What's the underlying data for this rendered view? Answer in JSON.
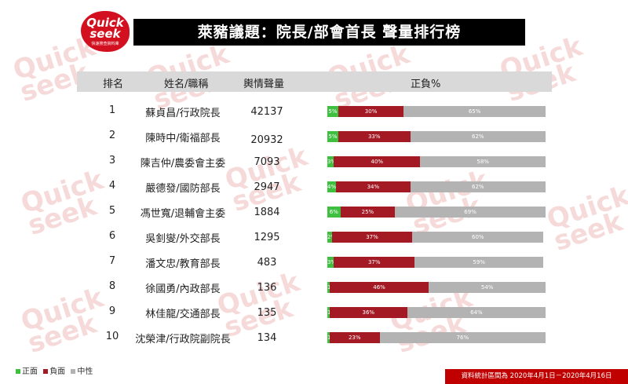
{
  "brand": {
    "logo_line1": "Quick",
    "logo_line2": "seek",
    "logo_sub": "快速搜查資料庫"
  },
  "title": "萊豬議題：院長/部會首長 聲量排行榜",
  "header": {
    "rank": "排名",
    "name": "姓名/職稱",
    "volume": "輿情聲量",
    "sentiment": "正負%"
  },
  "legend": {
    "positive": "正面",
    "negative": "負面",
    "neutral": "中性"
  },
  "footer": "資料統計區間為 2020年4月1日－2020年4月16日",
  "colors": {
    "positive": "#3fbf3f",
    "negative": "#a31a24",
    "neutral": "#b3b3b3",
    "title_bg": "#000000",
    "footer_bg": "#c00000"
  },
  "chart_data": {
    "type": "bar",
    "stacked": true,
    "orientation": "horizontal",
    "title": "萊豬議題：院長/部會首長 聲量排行榜",
    "categories": [
      "蘇貞昌/行政院長",
      "陳時中/衛福部長",
      "陳吉仲/農委會主委",
      "嚴德發/國防部長",
      "馮世寬/退輔會主委",
      "吳釗燮/外交部長",
      "潘文忠/教育部長",
      "徐國勇/內政部長",
      "林佳龍/交通部長",
      "沈榮津/行政院副院長"
    ],
    "ranks": [
      "1",
      "2",
      "3",
      "4",
      "5",
      "6",
      "7",
      "8",
      "9",
      "10"
    ],
    "volume": [
      42137,
      20932,
      7093,
      2947,
      1884,
      1295,
      483,
      136,
      135,
      134
    ],
    "series": [
      {
        "name": "正面",
        "values": [
          5,
          5,
          3,
          4,
          6,
          2,
          3,
          1,
          1,
          1
        ]
      },
      {
        "name": "負面",
        "values": [
          30,
          33,
          40,
          34,
          25,
          37,
          37,
          46,
          36,
          23
        ]
      },
      {
        "name": "中性",
        "values": [
          65,
          62,
          58,
          62,
          69,
          60,
          59,
          54,
          64,
          76
        ]
      }
    ]
  }
}
